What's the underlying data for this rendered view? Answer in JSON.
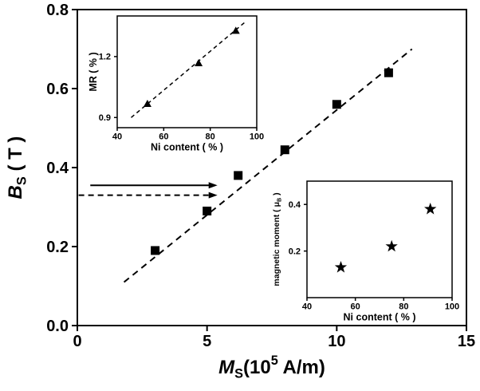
{
  "figure": {
    "background": "#ffffff",
    "foreground": "#000000"
  },
  "chart_data": [
    {
      "id": "main",
      "type": "scatter",
      "marker": "square",
      "title": "",
      "xlabel_plain": "Ms(10^5 A/m)",
      "xlabel_parts": [
        {
          "t": "M",
          "s": "italic"
        },
        {
          "t": "S",
          "s": "sub"
        },
        {
          "t": "(10",
          "s": "n"
        },
        {
          "t": "5",
          "s": "sup"
        },
        {
          "t": " A/m)",
          "s": "n"
        }
      ],
      "ylabel_plain": "Bs ( T )",
      "ylabel_parts": [
        {
          "t": "B",
          "s": "italic"
        },
        {
          "t": "S",
          "s": "sub"
        },
        {
          "t": " ( T )",
          "s": "n"
        }
      ],
      "xlim": [
        0,
        15
      ],
      "ylim": [
        0,
        0.8
      ],
      "xticks": [
        0,
        5,
        10,
        15
      ],
      "xtick_labels": [
        "0",
        "5",
        "10",
        "15"
      ],
      "yticks": [
        0,
        0.2,
        0.4,
        0.6,
        0.8
      ],
      "ytick_labels": [
        "0.0",
        "0.2",
        "0.4",
        "0.6",
        "0.8"
      ],
      "x": [
        3,
        5,
        6.2,
        8,
        10,
        12
      ],
      "y": [
        0.19,
        0.29,
        0.38,
        0.445,
        0.56,
        0.64
      ],
      "trendline": {
        "style": "dashed",
        "x": [
          1.8,
          12.9
        ],
        "y": [
          0.11,
          0.7
        ]
      },
      "annotations": [
        {
          "type": "arrow",
          "style": "solid",
          "y": 0.355,
          "x_from": 0.5,
          "x_to": 5.4
        },
        {
          "type": "arrow",
          "style": "dashed",
          "y": 0.33,
          "x_from": 0.05,
          "x_to": 5.4
        }
      ],
      "grid": false,
      "legend": null
    },
    {
      "id": "inset_mr",
      "type": "scatter",
      "marker": "triangle",
      "title": "",
      "xlabel_plain": "Ni content ( % )",
      "xlabel_parts": [
        {
          "t": "Ni content ( % )",
          "s": "n"
        }
      ],
      "ylabel_plain": "MR ( % )",
      "ylabel_parts": [
        {
          "t": "MR ( % )",
          "s": "n"
        }
      ],
      "xlim": [
        40,
        100
      ],
      "ylim": [
        0.85,
        1.4
      ],
      "xticks": [
        40,
        60,
        80,
        100
      ],
      "xtick_labels": [
        "40",
        "60",
        "80",
        "100"
      ],
      "yticks": [
        0.9,
        1.2
      ],
      "ytick_labels": [
        "0.9",
        "1.2"
      ],
      "x": [
        53,
        75,
        91
      ],
      "y": [
        0.97,
        1.17,
        1.33
      ],
      "trendline": {
        "style": "dashed",
        "x": [
          46,
          95
        ],
        "y": [
          0.9,
          1.37
        ]
      },
      "annotations": [],
      "grid": false,
      "legend": null
    },
    {
      "id": "inset_moment",
      "type": "scatter",
      "marker": "star",
      "title": "",
      "xlabel_plain": "Ni content ( % )",
      "xlabel_parts": [
        {
          "t": "Ni content ( % )",
          "s": "n"
        }
      ],
      "ylabel_plain": "magnetic moment ( uB )",
      "ylabel_parts": [
        {
          "t": "magnetic moment ( μ",
          "s": "n"
        },
        {
          "t": "B",
          "s": "sub"
        },
        {
          "t": " )",
          "s": "n"
        }
      ],
      "xlim": [
        40,
        100
      ],
      "ylim": [
        0,
        0.5
      ],
      "xticks": [
        40,
        60,
        80,
        100
      ],
      "xtick_labels": [
        "40",
        "60",
        "80",
        "100"
      ],
      "yticks": [
        0.2,
        0.4
      ],
      "ytick_labels": [
        "0.2",
        "0.4"
      ],
      "x": [
        54,
        75,
        91
      ],
      "y": [
        0.13,
        0.22,
        0.38
      ],
      "trendline": null,
      "annotations": [],
      "grid": false,
      "legend": null
    }
  ]
}
